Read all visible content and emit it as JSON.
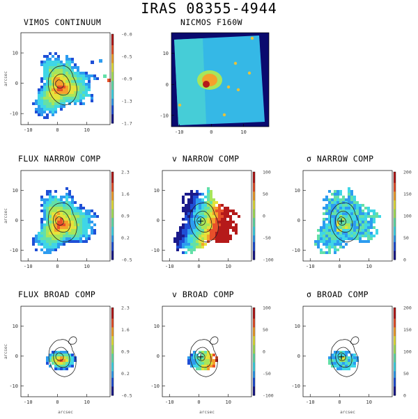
{
  "page_title": "IRAS 08355-4944",
  "colormap": [
    "#1a1a8c",
    "#1f4fd6",
    "#2d9cf0",
    "#3fd6e6",
    "#63e0a8",
    "#a8e65a",
    "#e6e23a",
    "#f4a12c",
    "#e8502a",
    "#b51a1a"
  ],
  "panels": [
    {
      "id": "vimos-continuum",
      "title": "VIMOS CONTINUUM",
      "ylabel": "arcsec",
      "xlabel": "",
      "xticks": [
        "-10",
        "0",
        "10"
      ],
      "yticks": [
        "10",
        "0",
        "-10"
      ],
      "cbar_ticks": [
        "-0.0",
        "-0.5",
        "-0.9",
        "-1.3",
        "-1.7"
      ],
      "visible": true
    },
    {
      "id": "nicmos-f160w",
      "title": "NICMOS F160W",
      "ylabel": "",
      "xlabel": "",
      "xticks": [
        "-10",
        "0",
        "10"
      ],
      "yticks": [
        "10",
        "0",
        "-10"
      ],
      "cbar_ticks": [],
      "visible": true
    },
    {
      "id": "flux-narrow",
      "title": "FLUX NARROW COMP",
      "ylabel": "arcsec",
      "xlabel": "",
      "xticks": [
        "-10",
        "0",
        "10"
      ],
      "yticks": [
        "10",
        "0",
        "-10"
      ],
      "cbar_ticks": [
        "2.3",
        "1.6",
        "0.9",
        "0.2",
        "-0.5"
      ],
      "visible": true
    },
    {
      "id": "v-narrow",
      "title": "v NARROW COMP",
      "ylabel": "",
      "xlabel": "",
      "xticks": [
        "-10",
        "0",
        "10"
      ],
      "yticks": [
        "10",
        "0",
        "-10"
      ],
      "cbar_ticks": [
        "100",
        "50",
        "0",
        "-50",
        "-100"
      ],
      "visible": true
    },
    {
      "id": "sigma-narrow",
      "title": "σ NARROW COMP",
      "ylabel": "",
      "xlabel": "",
      "xticks": [
        "-10",
        "0",
        "10"
      ],
      "yticks": [
        "10",
        "0",
        "-10"
      ],
      "cbar_ticks": [
        "200",
        "150",
        "100",
        "50",
        "0"
      ],
      "visible": true
    },
    {
      "id": "flux-broad",
      "title": "FLUX BROAD COMP",
      "ylabel": "arcsec",
      "xlabel": "arcsec",
      "xticks": [
        "-10",
        "0",
        "10"
      ],
      "yticks": [
        "10",
        "0",
        "-10"
      ],
      "cbar_ticks": [
        "2.3",
        "1.6",
        "0.9",
        "0.2",
        "-0.5"
      ],
      "visible": true
    },
    {
      "id": "v-broad",
      "title": "v BROAD COMP",
      "ylabel": "",
      "xlabel": "arcsec",
      "xticks": [
        "-10",
        "0",
        "10"
      ],
      "yticks": [
        "10",
        "0",
        "-10"
      ],
      "cbar_ticks": [
        "100",
        "50",
        "0",
        "-50",
        "-100"
      ],
      "visible": true
    },
    {
      "id": "sigma-broad",
      "title": "σ BROAD COMP",
      "ylabel": "",
      "xlabel": "arcsec",
      "xticks": [
        "-10",
        "0",
        "10"
      ],
      "yticks": [
        "10",
        "0",
        "-10"
      ],
      "cbar_ticks": [
        "200",
        "150",
        "100",
        "50",
        "0"
      ],
      "visible": true
    }
  ]
}
